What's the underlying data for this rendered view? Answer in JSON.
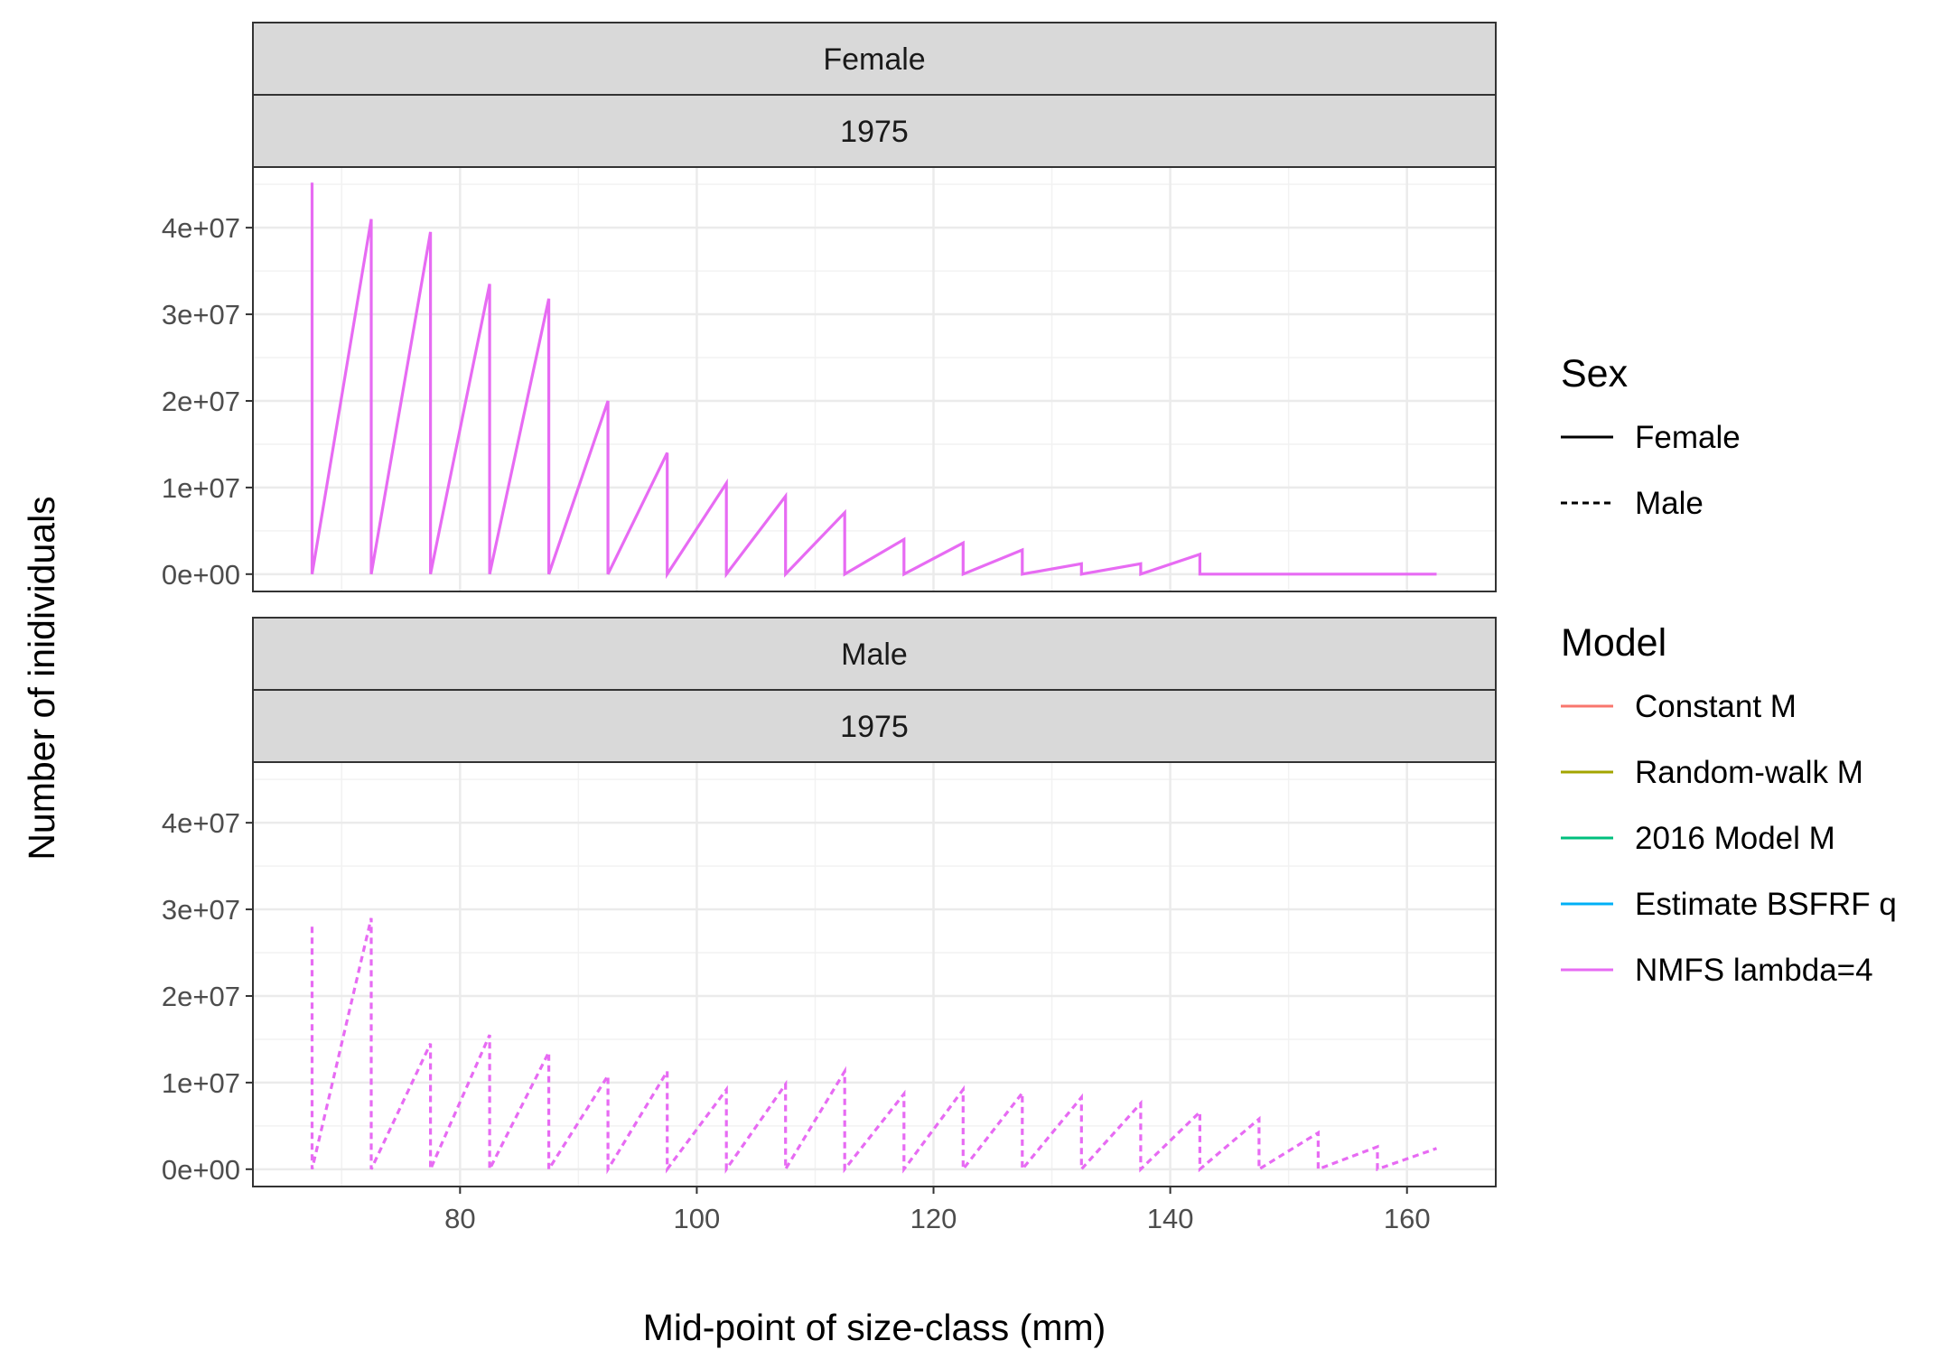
{
  "chart_data": {
    "type": "line",
    "xlabel": "Mid-point of size-class (mm)",
    "ylabel": "Number of inidividuals",
    "xlim": [
      62.5,
      167.5
    ],
    "ylim": [
      -2000000,
      47000000
    ],
    "x_ticks": [
      80,
      100,
      120,
      140,
      160
    ],
    "x_tick_labels": [
      "80",
      "100",
      "120",
      "140",
      "160"
    ],
    "y_ticks": [
      0,
      10000000,
      20000000,
      30000000,
      40000000
    ],
    "y_tick_labels": [
      "0e+00",
      "1e+07",
      "2e+07",
      "3e+07",
      "4e+07"
    ],
    "grid": true,
    "legend_position": "right",
    "legend": {
      "sex_title": "Sex",
      "sex_items": [
        {
          "label": "Female",
          "linetype": "solid"
        },
        {
          "label": "Male",
          "linetype": "dashed"
        }
      ],
      "model_title": "Model",
      "model_items": [
        {
          "label": "Constant M",
          "color": "#F8766D"
        },
        {
          "label": "Random-walk M",
          "color": "#A3A500"
        },
        {
          "label": "2016 Model M",
          "color": "#00BF7D"
        },
        {
          "label": "Estimate BSFRF q",
          "color": "#00B0F6"
        },
        {
          "label": "NMFS lambda=4",
          "color": "#E76BF3"
        }
      ]
    },
    "panels": [
      {
        "strip_sex": "Female",
        "strip_year": "1975",
        "linetype": "solid",
        "color": "#E76BF3",
        "series_name": "NMFS lambda=4",
        "x": [
          67.5,
          67.5,
          72.5,
          72.5,
          77.5,
          77.5,
          82.5,
          82.5,
          87.5,
          87.5,
          92.5,
          92.5,
          97.5,
          97.5,
          102.5,
          102.5,
          107.5,
          107.5,
          112.5,
          112.5,
          117.5,
          117.5,
          122.5,
          122.5,
          127.5,
          127.5,
          132.5,
          132.5,
          137.5,
          137.5,
          142.5,
          142.5,
          147.5,
          152.5,
          157.5,
          162.5
        ],
        "y": [
          45200000,
          0,
          41000000,
          0,
          39500000,
          0,
          33500000,
          0,
          31800000,
          0,
          20000000,
          0,
          14000000,
          0,
          10500000,
          0,
          9000000,
          0,
          7100000,
          0,
          4000000,
          0,
          3600000,
          0,
          2800000,
          0,
          1200000,
          0,
          1200000,
          0,
          2300000,
          0,
          0,
          0,
          0,
          0
        ]
      },
      {
        "strip_sex": "Male",
        "strip_year": "1975",
        "linetype": "dashed",
        "color": "#E76BF3",
        "series_name": "NMFS lambda=4",
        "x": [
          67.5,
          67.5,
          72.5,
          72.5,
          77.5,
          77.5,
          82.5,
          82.5,
          87.5,
          87.5,
          92.5,
          92.5,
          97.5,
          97.5,
          102.5,
          102.5,
          107.5,
          107.5,
          112.5,
          112.5,
          117.5,
          117.5,
          122.5,
          122.5,
          127.5,
          127.5,
          132.5,
          132.5,
          137.5,
          137.5,
          142.5,
          142.5,
          147.5,
          147.5,
          152.5,
          152.5,
          157.5,
          157.5,
          162.5
        ],
        "y": [
          28000000,
          0,
          29000000,
          0,
          14500000,
          0,
          15500000,
          0,
          13500000,
          0,
          10800000,
          0,
          11300000,
          0,
          9200000,
          0,
          9800000,
          0,
          11300000,
          0,
          8700000,
          0,
          9200000,
          0,
          8800000,
          0,
          8300000,
          0,
          7600000,
          0,
          6600000,
          0,
          5800000,
          0,
          4200000,
          0,
          2600000,
          0,
          2400000
        ]
      }
    ]
  }
}
